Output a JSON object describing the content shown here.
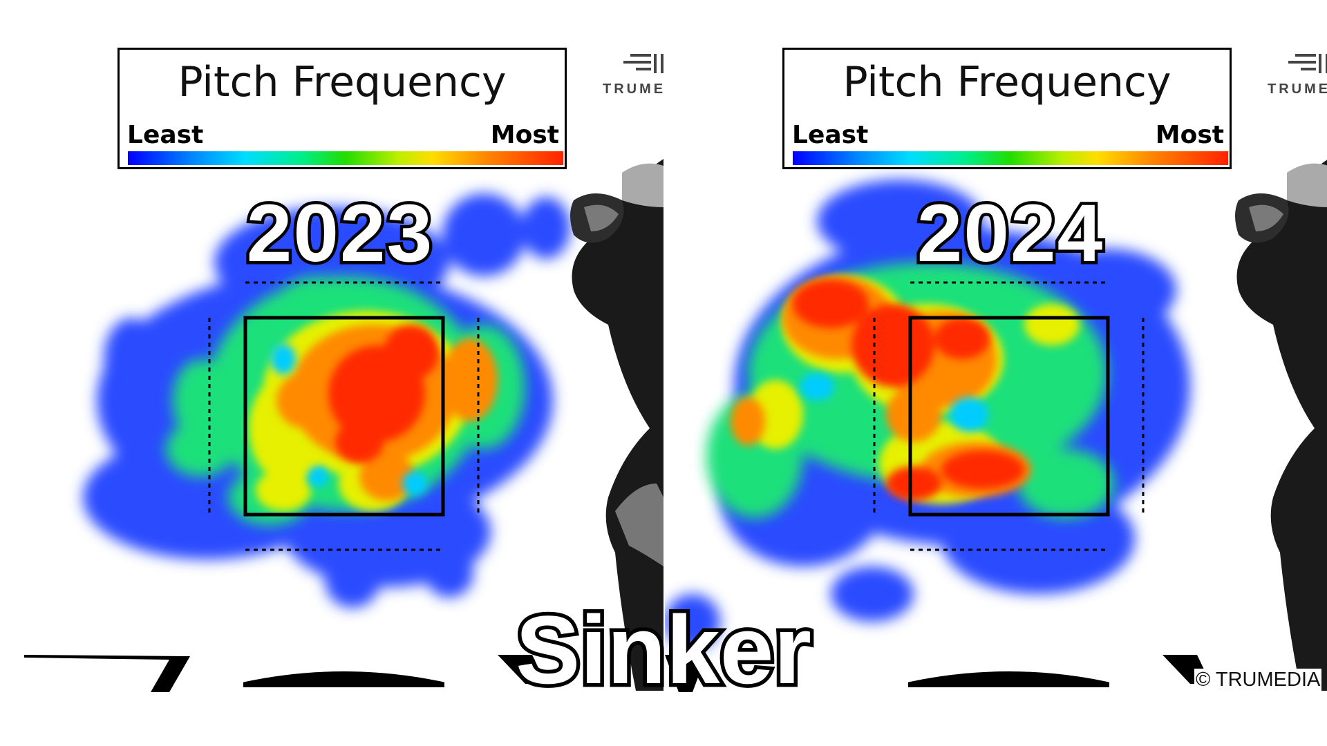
{
  "legend": {
    "title": "Pitch Frequency",
    "min_label": "Least",
    "max_label": "Most"
  },
  "logo_text": "TRUME",
  "pitch_type": "Sinker",
  "copyright": "© TRUMEDIA",
  "chart_data": [
    {
      "type": "heatmap",
      "title": "2023",
      "legend": "Pitch Frequency",
      "scale": [
        "Least",
        "Most"
      ],
      "hotspots": [
        {
          "x": 0.58,
          "y": 0.43,
          "level": 1.0
        },
        {
          "x": 0.47,
          "y": 0.5,
          "level": 0.85
        },
        {
          "x": 0.74,
          "y": 0.33,
          "level": 0.85
        },
        {
          "x": 0.7,
          "y": 0.58,
          "level": 0.75
        },
        {
          "x": 0.6,
          "y": 0.7,
          "level": 0.75
        },
        {
          "x": 0.35,
          "y": 0.4,
          "level": 0.55
        },
        {
          "x": 0.3,
          "y": 0.78,
          "level": 0.5
        },
        {
          "x": 0.85,
          "y": 0.4,
          "level": 0.6
        },
        {
          "x": 0.15,
          "y": 0.6,
          "level": 0.35
        }
      ]
    },
    {
      "type": "heatmap",
      "title": "2024",
      "legend": "Pitch Frequency",
      "scale": [
        "Least",
        "Most"
      ],
      "hotspots": [
        {
          "x": 0.3,
          "y": 0.05,
          "level": 1.0
        },
        {
          "x": 0.45,
          "y": 0.2,
          "level": 1.0
        },
        {
          "x": 0.65,
          "y": 0.15,
          "level": 0.9
        },
        {
          "x": 0.55,
          "y": 0.4,
          "level": 0.75
        },
        {
          "x": 0.08,
          "y": 0.55,
          "level": 0.85
        },
        {
          "x": 0.75,
          "y": 0.6,
          "level": 0.85
        },
        {
          "x": 0.4,
          "y": 0.8,
          "level": 0.9
        },
        {
          "x": 1.1,
          "y": 0.0,
          "level": 0.5
        },
        {
          "x": -0.25,
          "y": 0.7,
          "level": 0.5
        }
      ]
    }
  ]
}
